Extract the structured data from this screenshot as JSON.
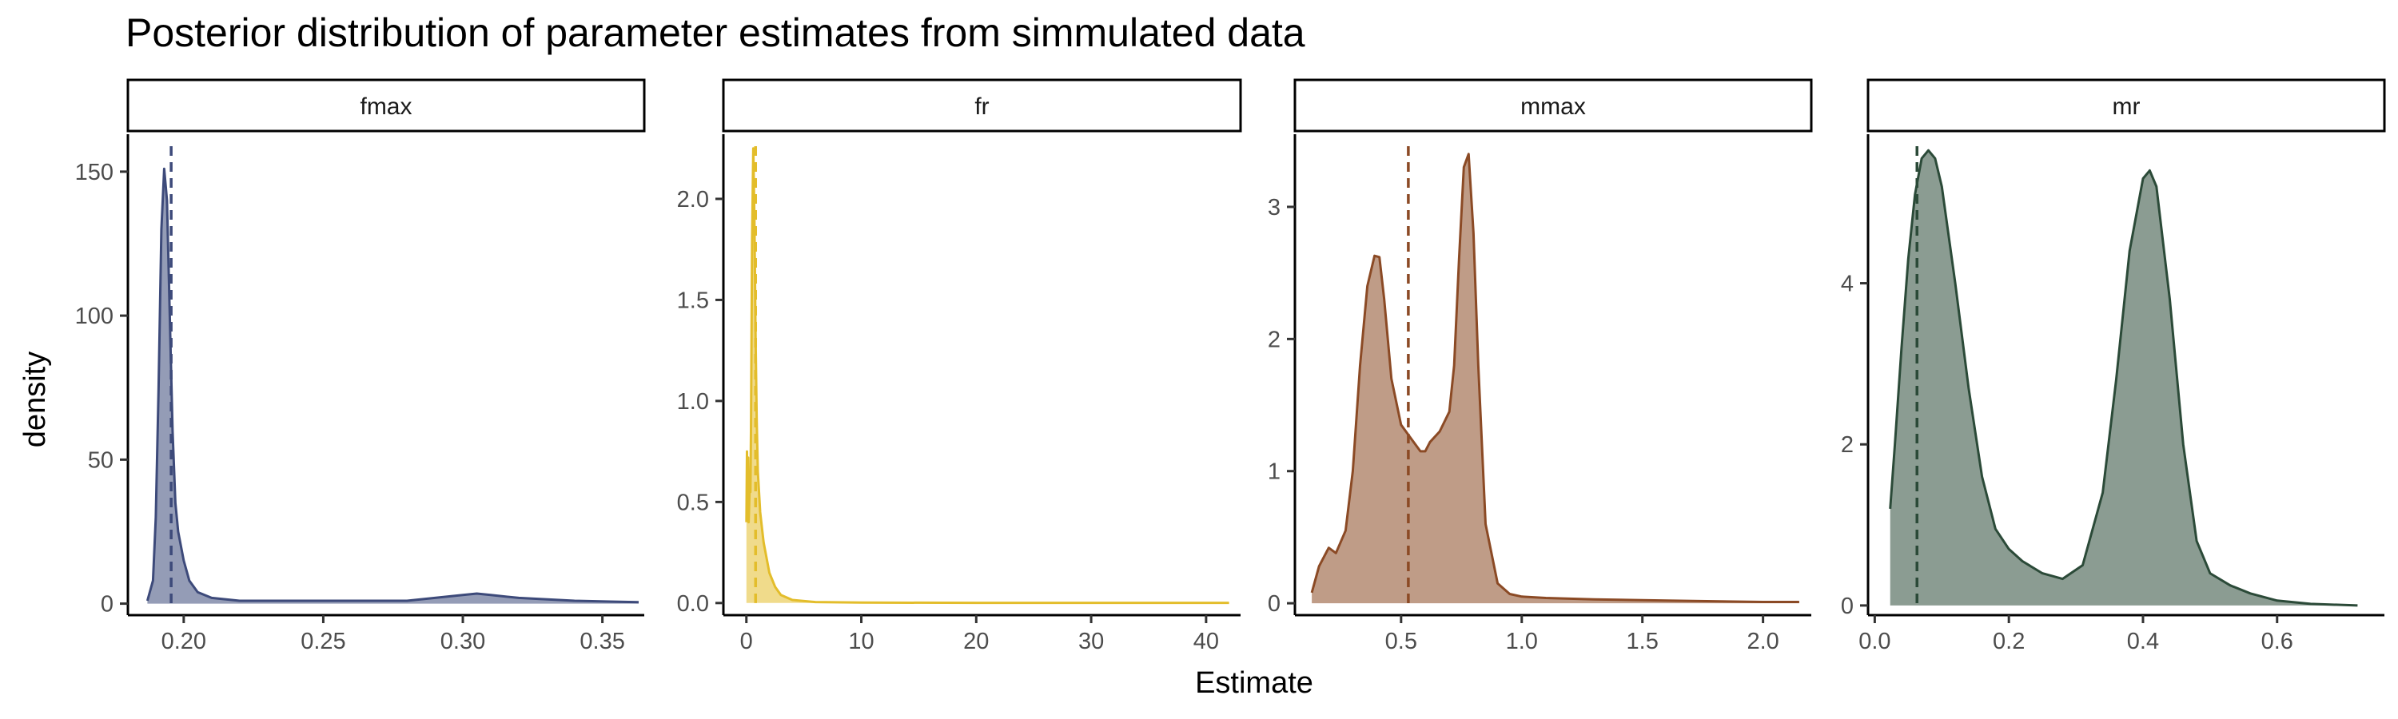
{
  "chart_data": {
    "type": "area",
    "title": "Posterior distribution of parameter estimates from simmulated data",
    "xlabel": "Estimate",
    "ylabel": "density",
    "grid": false,
    "panels": [
      {
        "name": "fmax",
        "color": "#3d4a7a",
        "xlim": [
          0.18,
          0.365
        ],
        "ylim": [
          -4,
          163
        ],
        "xticks": [
          0.2,
          0.25,
          0.3,
          0.35
        ],
        "xtick_labels": [
          "0.20",
          "0.25",
          "0.30",
          "0.35"
        ],
        "yticks": [
          0,
          50,
          100,
          150
        ],
        "ytick_labels": [
          "0",
          "50",
          "100",
          "150"
        ],
        "vline": 0.1955,
        "x": [
          0.187,
          0.189,
          0.19,
          0.191,
          0.192,
          0.193,
          0.194,
          0.195,
          0.196,
          0.197,
          0.198,
          0.2,
          0.202,
          0.205,
          0.21,
          0.22,
          0.24,
          0.26,
          0.28,
          0.29,
          0.3,
          0.305,
          0.31,
          0.32,
          0.34,
          0.363
        ],
        "y": [
          1,
          8,
          30,
          75,
          130,
          151,
          140,
          100,
          60,
          35,
          25,
          15,
          8,
          4,
          2,
          1,
          1,
          1,
          1,
          2,
          3,
          3.5,
          3,
          2,
          1,
          0.5
        ]
      },
      {
        "name": "fr",
        "color": "#e3bd2b",
        "xlim": [
          -2,
          43
        ],
        "ylim": [
          -0.06,
          2.32
        ],
        "xticks": [
          0,
          10,
          20,
          30,
          40
        ],
        "xtick_labels": [
          "0",
          "10",
          "20",
          "30",
          "40"
        ],
        "yticks": [
          0,
          0.5,
          1.0,
          1.5,
          2.0
        ],
        "ytick_labels": [
          "0.0",
          "0.5",
          "1.0",
          "1.5",
          "2.0"
        ],
        "vline": 0.8,
        "x": [
          0.0,
          0.05,
          0.1,
          0.15,
          0.2,
          0.3,
          0.35,
          0.4,
          0.5,
          0.6,
          0.7,
          0.8,
          0.9,
          1.0,
          1.2,
          1.5,
          2.0,
          2.5,
          3.0,
          4.0,
          6.0,
          10.0,
          20.0,
          30.0,
          42.0
        ],
        "y": [
          0.4,
          0.75,
          0.42,
          0.72,
          0.4,
          0.6,
          0.55,
          0.85,
          1.8,
          2.25,
          1.9,
          1.3,
          0.9,
          0.65,
          0.45,
          0.3,
          0.15,
          0.08,
          0.04,
          0.015,
          0.005,
          0.002,
          0.001,
          0.001,
          0.001
        ]
      },
      {
        "name": "mmax",
        "color": "#8b4a25",
        "xlim": [
          0.06,
          2.2
        ],
        "ylim": [
          -0.09,
          3.55
        ],
        "xticks": [
          0.5,
          1.0,
          1.5,
          2.0
        ],
        "xtick_labels": [
          "0.5",
          "1.0",
          "1.5",
          "2.0"
        ],
        "yticks": [
          0,
          1,
          2,
          3
        ],
        "ytick_labels": [
          "0",
          "1",
          "2",
          "3"
        ],
        "vline": 0.53,
        "x": [
          0.13,
          0.16,
          0.2,
          0.23,
          0.27,
          0.3,
          0.33,
          0.36,
          0.39,
          0.41,
          0.43,
          0.46,
          0.5,
          0.54,
          0.58,
          0.6,
          0.62,
          0.66,
          0.7,
          0.72,
          0.74,
          0.76,
          0.78,
          0.8,
          0.82,
          0.85,
          0.9,
          0.95,
          1.0,
          1.1,
          1.3,
          1.6,
          2.0,
          2.15
        ],
        "y": [
          0.08,
          0.28,
          0.42,
          0.38,
          0.55,
          1.0,
          1.8,
          2.4,
          2.63,
          2.62,
          2.3,
          1.7,
          1.35,
          1.25,
          1.15,
          1.15,
          1.22,
          1.3,
          1.45,
          1.8,
          2.6,
          3.3,
          3.4,
          2.8,
          1.8,
          0.6,
          0.15,
          0.07,
          0.05,
          0.04,
          0.03,
          0.02,
          0.01,
          0.01
        ]
      },
      {
        "name": "mr",
        "color": "#2b4a38",
        "xlim": [
          -0.01,
          0.76
        ],
        "ylim": [
          -0.12,
          5.85
        ],
        "xticks": [
          0.0,
          0.2,
          0.4,
          0.6
        ],
        "xtick_labels": [
          "0.0",
          "0.2",
          "0.4",
          "0.6"
        ],
        "yticks": [
          0,
          2,
          4
        ],
        "ytick_labels": [
          "0",
          "2",
          "4"
        ],
        "vline": 0.063,
        "x": [
          0.023,
          0.03,
          0.04,
          0.05,
          0.06,
          0.07,
          0.08,
          0.09,
          0.1,
          0.12,
          0.14,
          0.16,
          0.18,
          0.2,
          0.22,
          0.25,
          0.28,
          0.31,
          0.34,
          0.36,
          0.38,
          0.4,
          0.41,
          0.42,
          0.44,
          0.46,
          0.48,
          0.5,
          0.53,
          0.56,
          0.6,
          0.65,
          0.72
        ],
        "y": [
          1.2,
          2.0,
          3.2,
          4.3,
          5.1,
          5.55,
          5.65,
          5.55,
          5.2,
          4.0,
          2.7,
          1.6,
          0.95,
          0.7,
          0.55,
          0.4,
          0.33,
          0.5,
          1.4,
          2.8,
          4.4,
          5.3,
          5.4,
          5.2,
          3.8,
          2.0,
          0.8,
          0.4,
          0.25,
          0.15,
          0.06,
          0.02,
          0.0
        ]
      }
    ]
  }
}
